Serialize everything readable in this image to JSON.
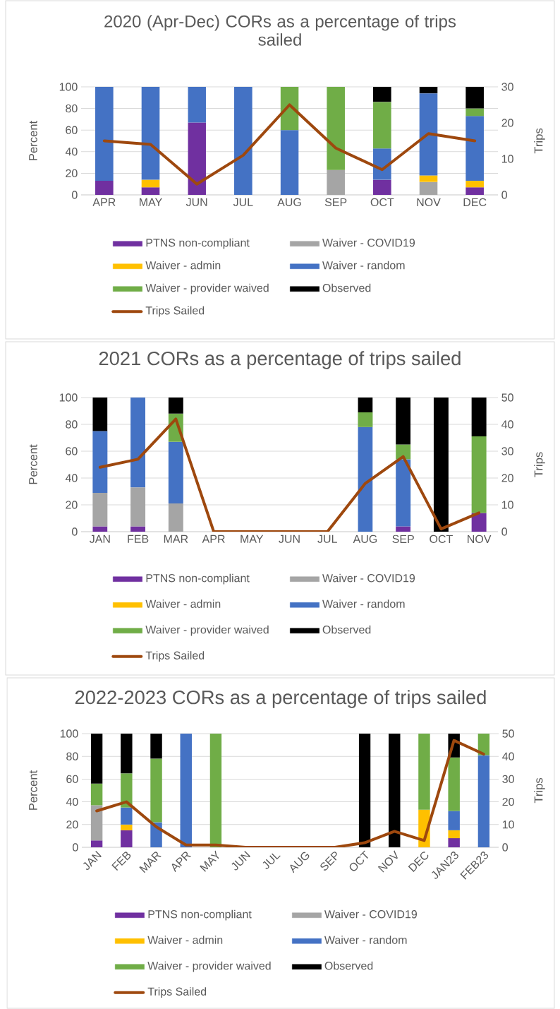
{
  "chart_data": [
    {
      "type": "bar",
      "title": "2020 (Apr-Dec) CORs as a percentage of trips sailed",
      "categories": [
        "APR",
        "MAY",
        "JUN",
        "JUL",
        "AUG",
        "SEP",
        "OCT",
        "NOV",
        "DEC"
      ],
      "stacked": true,
      "ylabel": "Percent",
      "y2label": "Trips",
      "ylim": [
        0,
        100
      ],
      "yticks": [
        0,
        20,
        40,
        60,
        80,
        100
      ],
      "y2lim": [
        0,
        30
      ],
      "y2ticks": [
        0,
        10,
        20,
        30
      ],
      "grid": "y",
      "legend": "bottom",
      "series": [
        {
          "name": "PTNS non-compliant",
          "color": "#7030a0",
          "values": [
            13,
            7,
            67,
            null,
            null,
            null,
            14,
            null,
            7
          ]
        },
        {
          "name": "Waiver - COVID19",
          "color": "#a5a5a5",
          "values": [
            null,
            null,
            null,
            null,
            null,
            23,
            null,
            12,
            null
          ]
        },
        {
          "name": "Waiver - admin",
          "color": "#ffc000",
          "values": [
            null,
            7,
            null,
            null,
            null,
            null,
            null,
            6,
            6
          ]
        },
        {
          "name": "Waiver - random",
          "color": "#4472c4",
          "values": [
            87,
            86,
            33,
            100,
            60,
            null,
            29,
            76,
            60
          ]
        },
        {
          "name": "Waiver - provider waived",
          "color": "#70ad47",
          "values": [
            null,
            null,
            null,
            null,
            40,
            77,
            43,
            null,
            7
          ]
        },
        {
          "name": "Observed",
          "color": "#000000",
          "values": [
            null,
            null,
            null,
            null,
            null,
            null,
            14,
            6,
            20
          ]
        },
        {
          "name": "Trips Sailed",
          "type": "line",
          "axis": "y2",
          "color": "#9e480e",
          "values": [
            15,
            14,
            3,
            11,
            25,
            13,
            7,
            17,
            15
          ]
        }
      ]
    },
    {
      "type": "bar",
      "title": "2021 CORs as a percentage of trips sailed",
      "categories": [
        "JAN",
        "FEB",
        "MAR",
        "APR",
        "MAY",
        "JUN",
        "JUL",
        "AUG",
        "SEP",
        "OCT",
        "NOV"
      ],
      "stacked": true,
      "ylabel": "Percent",
      "y2label": "Trips",
      "ylim": [
        0,
        100
      ],
      "yticks": [
        0,
        20,
        40,
        60,
        80,
        100
      ],
      "y2lim": [
        0,
        50
      ],
      "y2ticks": [
        0,
        10,
        20,
        30,
        40,
        50
      ],
      "grid": "y",
      "legend": "bottom",
      "series": [
        {
          "name": "PTNS non-compliant",
          "color": "#7030a0",
          "values": [
            4,
            4,
            null,
            null,
            null,
            null,
            null,
            null,
            4,
            null,
            14
          ]
        },
        {
          "name": "Waiver - COVID19",
          "color": "#a5a5a5",
          "values": [
            25,
            29,
            21,
            null,
            null,
            null,
            null,
            null,
            null,
            null,
            null
          ]
        },
        {
          "name": "Waiver - admin",
          "color": "#ffc000",
          "values": [
            null,
            null,
            null,
            null,
            null,
            null,
            null,
            null,
            null,
            null,
            null
          ]
        },
        {
          "name": "Waiver - random",
          "color": "#4472c4",
          "values": [
            46,
            67,
            46,
            null,
            null,
            null,
            null,
            78,
            50,
            null,
            null
          ]
        },
        {
          "name": "Waiver - provider waived",
          "color": "#70ad47",
          "values": [
            null,
            null,
            21,
            null,
            null,
            null,
            null,
            11,
            11,
            null,
            57
          ]
        },
        {
          "name": "Observed",
          "color": "#000000",
          "values": [
            25,
            null,
            12,
            null,
            null,
            null,
            null,
            11,
            35,
            100,
            29
          ]
        },
        {
          "name": "Trips Sailed",
          "type": "line",
          "axis": "y2",
          "color": "#9e480e",
          "values": [
            24,
            27,
            42,
            0,
            0,
            0,
            0,
            18,
            28,
            1,
            7
          ]
        }
      ]
    },
    {
      "type": "bar",
      "title": "2022-2023 CORs as a percentage of trips sailed",
      "categories": [
        "JAN",
        "FEB",
        "MAR",
        "APR",
        "MAY",
        "JUN",
        "JUL",
        "AUG",
        "SEP",
        "OCT",
        "NOV",
        "DEC",
        "JAN23",
        "FEB23"
      ],
      "stacked": true,
      "ylabel": "Percent",
      "y2label": "Trips",
      "ylim": [
        0,
        100
      ],
      "yticks": [
        0,
        20,
        40,
        60,
        80,
        100
      ],
      "y2lim": [
        0,
        50
      ],
      "y2ticks": [
        0,
        10,
        20,
        30,
        40,
        50
      ],
      "grid": "y",
      "legend": "bottom",
      "series": [
        {
          "name": "PTNS non-compliant",
          "color": "#7030a0",
          "values": [
            6,
            15,
            null,
            null,
            null,
            null,
            null,
            null,
            null,
            null,
            null,
            null,
            8,
            null
          ]
        },
        {
          "name": "Waiver - COVID19",
          "color": "#a5a5a5",
          "values": [
            31,
            null,
            null,
            null,
            null,
            null,
            null,
            null,
            null,
            null,
            null,
            null,
            null,
            null
          ]
        },
        {
          "name": "Waiver - admin",
          "color": "#ffc000",
          "values": [
            null,
            5,
            null,
            null,
            null,
            null,
            null,
            null,
            null,
            null,
            null,
            33,
            7,
            null
          ]
        },
        {
          "name": "Waiver - random",
          "color": "#4472c4",
          "values": [
            null,
            15,
            22,
            100,
            null,
            null,
            null,
            null,
            null,
            null,
            null,
            null,
            17,
            81
          ]
        },
        {
          "name": "Waiver - provider waived",
          "color": "#70ad47",
          "values": [
            19,
            30,
            56,
            null,
            100,
            null,
            null,
            null,
            null,
            null,
            null,
            67,
            47,
            19
          ]
        },
        {
          "name": "Observed",
          "color": "#000000",
          "values": [
            44,
            35,
            22,
            null,
            null,
            null,
            null,
            null,
            null,
            100,
            100,
            null,
            21,
            null
          ]
        },
        {
          "name": "Trips Sailed",
          "type": "line",
          "axis": "y2",
          "color": "#9e480e",
          "values": [
            16,
            20,
            9,
            1,
            1,
            0,
            0,
            0,
            0,
            2,
            7,
            3,
            47,
            41
          ]
        }
      ]
    }
  ]
}
